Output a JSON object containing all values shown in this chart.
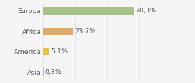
{
  "categories": [
    "Europa",
    "Africa",
    "America",
    "Asia"
  ],
  "values": [
    70.3,
    23.7,
    5.1,
    0.8
  ],
  "labels": [
    "70,3%",
    "23,7%",
    "5,1%",
    "0,8%"
  ],
  "colors": [
    "#a8c08a",
    "#e0a96d",
    "#e8c040",
    "#aabcdd"
  ],
  "xlim": [
    0,
    100
  ],
  "background_color": "#f5f5f5",
  "bar_height": 0.38,
  "label_fontsize": 6.8,
  "tick_fontsize": 6.8,
  "grid_color": "#dddddd"
}
